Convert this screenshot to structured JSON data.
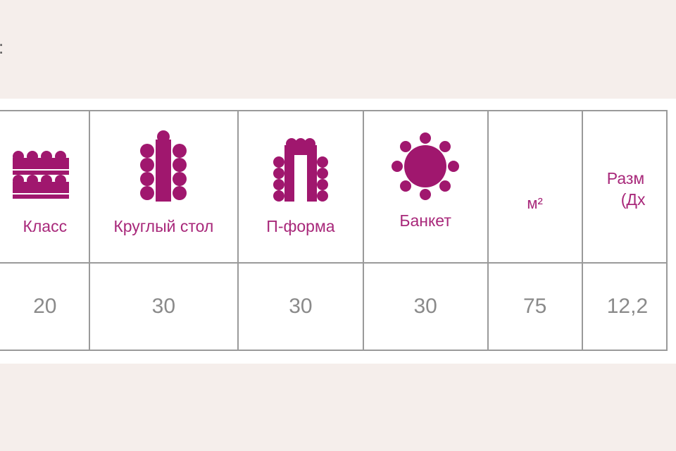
{
  "top_text": ":",
  "accent_color": "#a0176e",
  "table": {
    "headers": [
      {
        "label": "Класс",
        "icon": "classroom-layout-icon"
      },
      {
        "label": "Круглый стол",
        "icon": "round-table-layout-icon"
      },
      {
        "label": "П-форма",
        "icon": "u-shape-layout-icon"
      },
      {
        "label": "Банкет",
        "icon": "banquet-layout-icon"
      },
      {
        "label": "м²"
      },
      {
        "label": "Разм",
        "label2": "(Дх"
      }
    ],
    "row": [
      "20",
      "30",
      "30",
      "30",
      "75",
      "12,2"
    ]
  }
}
